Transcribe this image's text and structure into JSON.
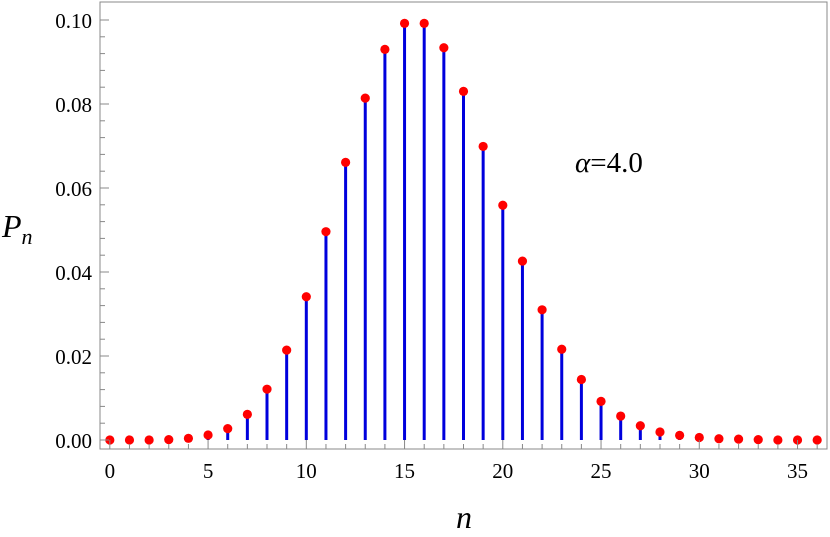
{
  "chart_data": {
    "type": "stem",
    "xlabel": "n",
    "ylabel": {
      "main": "P",
      "subscript": "n"
    },
    "annotation": {
      "symbol": "α",
      "text": "=4.0"
    },
    "xlim": [
      -0.5,
      36.5
    ],
    "ylim": [
      0,
      0.1
    ],
    "x_ticks": [
      0,
      5,
      10,
      15,
      20,
      25,
      30,
      35
    ],
    "x_tick_labels": [
      "0",
      "5",
      "10",
      "15",
      "20",
      "25",
      "30",
      "35"
    ],
    "y_ticks": [
      0,
      0.02,
      0.04,
      0.06,
      0.08,
      0.1
    ],
    "y_tick_labels": [
      "0.00",
      "0.02",
      "0.04",
      "0.06",
      "0.08",
      "0.10"
    ],
    "grid": false,
    "stem_color": "#0000dd",
    "marker_color": "#ff0000",
    "x": [
      0,
      1,
      2,
      3,
      4,
      5,
      6,
      7,
      8,
      9,
      10,
      11,
      12,
      13,
      14,
      15,
      16,
      17,
      18,
      19,
      20,
      21,
      22,
      23,
      24,
      25,
      26,
      27,
      28,
      29,
      30,
      31,
      32,
      33,
      34,
      35,
      36
    ],
    "values": [
      0.0,
      0.0,
      0.0,
      0.0001,
      0.0004,
      0.0012,
      0.0027,
      0.0061,
      0.0121,
      0.0214,
      0.0341,
      0.0496,
      0.0661,
      0.0814,
      0.093,
      0.0992,
      0.0992,
      0.0934,
      0.083,
      0.0699,
      0.0559,
      0.0426,
      0.031,
      0.0216,
      0.0144,
      0.0092,
      0.0057,
      0.0034,
      0.0019,
      0.0011,
      0.0006,
      0.0003,
      0.0002,
      0.0001,
      0.0,
      0.0,
      0.0
    ]
  }
}
